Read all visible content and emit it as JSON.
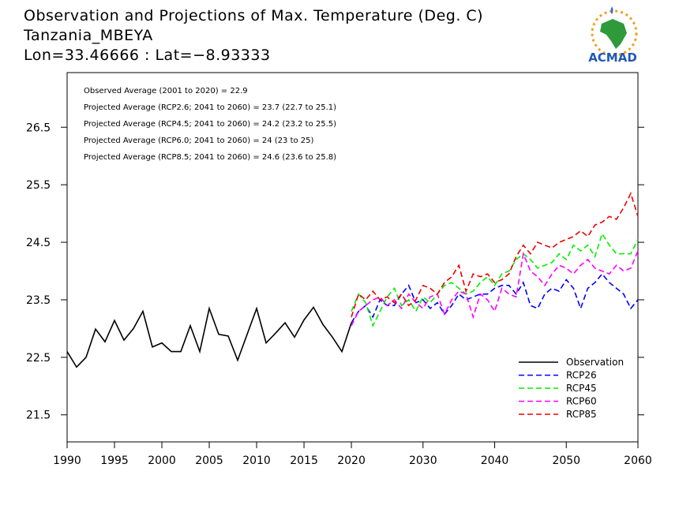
{
  "chart_data": {
    "type": "line",
    "title": "Observation and Projections of Max. Temperature (Deg. C)",
    "subtitle": "Tanzania_MBEYA",
    "location": "Lon=33.46666 : Lat=−8.93333",
    "logo_text": "ACMAD",
    "annotations": [
      "Observed Average (2001 to 2020) = 22.9",
      "Projected Average (RCP2.6; 2041 to 2060) = 23.7 (22.7 to 25.1)",
      "Projected Average (RCP4.5; 2041 to 2060) = 24.2 (23.2 to 25.5)",
      "Projected Average (RCP6.0; 2041 to 2060) = 24 (23 to 25)",
      "Projected Average (RCP8.5; 2041 to 2060) = 24.6 (23.6 to 25.8)"
    ],
    "xlim": [
      1990,
      2060
    ],
    "xticks": [
      1990,
      1995,
      2000,
      2005,
      2010,
      2015,
      2020,
      2030,
      2040,
      2050,
      2060
    ],
    "ylim": [
      21.03,
      27.45
    ],
    "yticks": [
      21.5,
      22.5,
      23.5,
      24.5,
      25.5,
      26.5
    ],
    "legend": "lower right",
    "series": [
      {
        "name": "Observation",
        "color": "#000000",
        "dashed": false,
        "x": [
          1990,
          1991,
          1992,
          1993,
          1994,
          1995,
          1996,
          1997,
          1998,
          1999,
          2000,
          2001,
          2002,
          2003,
          2004,
          2005,
          2006,
          2007,
          2008,
          2009,
          2010,
          2011,
          2012,
          2013,
          2014,
          2015,
          2016,
          2017,
          2018,
          2019,
          2020
        ],
        "values": [
          22.6,
          22.33,
          22.5,
          22.99,
          22.77,
          23.14,
          22.8,
          23.0,
          23.3,
          22.68,
          22.75,
          22.6,
          22.6,
          23.05,
          22.6,
          23.35,
          22.9,
          22.87,
          22.45,
          22.9,
          23.35,
          22.75,
          22.92,
          23.1,
          22.85,
          23.15,
          23.37,
          23.07,
          22.85,
          22.6,
          23.1
        ]
      },
      {
        "name": "RCP26",
        "color": "#0000ff",
        "dashed": true,
        "x": [
          2020,
          2021,
          2022,
          2023,
          2024,
          2025,
          2026,
          2027,
          2028,
          2029,
          2030,
          2031,
          2032,
          2033,
          2034,
          2035,
          2036,
          2037,
          2038,
          2039,
          2040,
          2041,
          2042,
          2043,
          2044,
          2045,
          2046,
          2047,
          2048,
          2049,
          2050,
          2051,
          2052,
          2053,
          2054,
          2055,
          2056,
          2057,
          2058,
          2059,
          2060
        ],
        "values": [
          23.1,
          23.3,
          23.4,
          23.2,
          23.5,
          23.4,
          23.4,
          23.6,
          23.75,
          23.45,
          23.5,
          23.35,
          23.45,
          23.25,
          23.4,
          23.6,
          23.5,
          23.55,
          23.6,
          23.6,
          23.7,
          23.75,
          23.75,
          23.6,
          23.8,
          23.4,
          23.35,
          23.6,
          23.7,
          23.65,
          23.85,
          23.7,
          23.35,
          23.7,
          23.8,
          23.95,
          23.8,
          23.7,
          23.6,
          23.35,
          23.5
        ]
      },
      {
        "name": "RCP45",
        "color": "#00ee00",
        "dashed": true,
        "x": [
          2020,
          2021,
          2022,
          2023,
          2024,
          2025,
          2026,
          2027,
          2028,
          2029,
          2030,
          2031,
          2032,
          2033,
          2034,
          2035,
          2036,
          2037,
          2038,
          2039,
          2040,
          2041,
          2042,
          2043,
          2044,
          2045,
          2046,
          2047,
          2048,
          2049,
          2050,
          2051,
          2052,
          2053,
          2054,
          2055,
          2056,
          2057,
          2058,
          2059,
          2060
        ],
        "values": [
          23.3,
          23.6,
          23.45,
          23.05,
          23.3,
          23.55,
          23.7,
          23.4,
          23.5,
          23.3,
          23.55,
          23.45,
          23.6,
          23.75,
          23.8,
          23.7,
          23.6,
          23.65,
          23.8,
          23.9,
          23.75,
          23.95,
          24.0,
          24.2,
          24.3,
          24.2,
          24.05,
          24.1,
          24.15,
          24.3,
          24.2,
          24.45,
          24.35,
          24.45,
          24.25,
          24.65,
          24.45,
          24.3,
          24.3,
          24.3,
          24.55
        ]
      },
      {
        "name": "RCP60",
        "color": "#ff00ff",
        "dashed": true,
        "x": [
          2020,
          2021,
          2022,
          2023,
          2024,
          2025,
          2026,
          2027,
          2028,
          2029,
          2030,
          2031,
          2032,
          2033,
          2034,
          2035,
          2036,
          2037,
          2038,
          2039,
          2040,
          2041,
          2042,
          2043,
          2044,
          2045,
          2046,
          2047,
          2048,
          2049,
          2050,
          2051,
          2052,
          2053,
          2054,
          2055,
          2056,
          2057,
          2058,
          2059,
          2060
        ],
        "values": [
          23.05,
          23.3,
          23.4,
          23.5,
          23.55,
          23.4,
          23.5,
          23.35,
          23.6,
          23.45,
          23.35,
          23.55,
          23.6,
          23.25,
          23.5,
          23.65,
          23.6,
          23.2,
          23.6,
          23.5,
          23.3,
          23.7,
          23.6,
          23.55,
          24.3,
          24.0,
          23.9,
          23.75,
          23.95,
          24.1,
          24.05,
          23.95,
          24.1,
          24.2,
          24.05,
          24.0,
          23.95,
          24.1,
          24.0,
          24.05,
          24.35
        ]
      },
      {
        "name": "RCP85",
        "color": "#ee0000",
        "dashed": true,
        "x": [
          2020,
          2021,
          2022,
          2023,
          2024,
          2025,
          2026,
          2027,
          2028,
          2029,
          2030,
          2031,
          2032,
          2033,
          2034,
          2035,
          2036,
          2037,
          2038,
          2039,
          2040,
          2041,
          2042,
          2043,
          2044,
          2045,
          2046,
          2047,
          2048,
          2049,
          2050,
          2051,
          2052,
          2053,
          2054,
          2055,
          2056,
          2057,
          2058,
          2059,
          2060
        ],
        "values": [
          23.2,
          23.6,
          23.5,
          23.65,
          23.5,
          23.55,
          23.45,
          23.6,
          23.4,
          23.5,
          23.75,
          23.7,
          23.6,
          23.8,
          23.9,
          24.1,
          23.65,
          23.95,
          23.9,
          23.95,
          23.8,
          23.85,
          23.95,
          24.25,
          24.45,
          24.3,
          24.5,
          24.45,
          24.4,
          24.5,
          24.55,
          24.6,
          24.7,
          24.6,
          24.8,
          24.85,
          24.95,
          24.9,
          25.1,
          25.35,
          24.95
        ]
      }
    ]
  }
}
